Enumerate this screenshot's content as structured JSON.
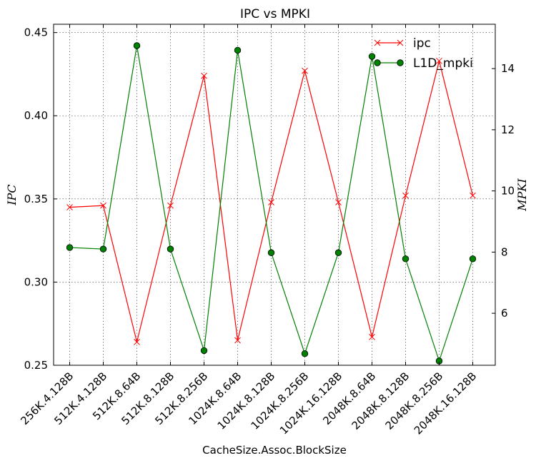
{
  "chart_data": {
    "type": "line",
    "title": "IPC vs MPKI",
    "xlabel": "CacheSize.Assoc.BlockSize",
    "ylabel_left": "IPC",
    "ylabel_right": "MPKI",
    "categories": [
      "256K.4.128B",
      "512K.4.128B",
      "512K.8.64B",
      "512K.8.128B",
      "512K.8.256B",
      "1024K.8.64B",
      "1024K.8.128B",
      "1024K.8.256B",
      "1024K.16.128B",
      "2048K.8.64B",
      "2048K.8.128B",
      "2048K.8.256B",
      "2048K.16.128B"
    ],
    "ylim_left": [
      0.25,
      0.455
    ],
    "yticks_left": [
      "0.25",
      "0.30",
      "0.35",
      "0.40",
      "0.45"
    ],
    "ylim_right": [
      4.3,
      15.45
    ],
    "yticks_right": [
      "6",
      "8",
      "10",
      "12",
      "14"
    ],
    "grid": true,
    "legend": {
      "position": "top-right",
      "entries": [
        "ipc",
        "L1D_mpki"
      ]
    },
    "series": [
      {
        "name": "ipc",
        "axis": "left",
        "color": "#ff0000",
        "marker": "x",
        "values": [
          0.345,
          0.346,
          0.264,
          0.346,
          0.424,
          0.265,
          0.348,
          0.427,
          0.348,
          0.267,
          0.352,
          0.433,
          0.352
        ]
      },
      {
        "name": "L1D_mpki",
        "axis": "right",
        "color": "#008000",
        "marker": "o",
        "values": [
          8.15,
          8.1,
          14.75,
          8.1,
          4.78,
          14.6,
          7.98,
          4.68,
          7.98,
          14.4,
          7.78,
          4.44,
          7.78
        ]
      }
    ]
  }
}
